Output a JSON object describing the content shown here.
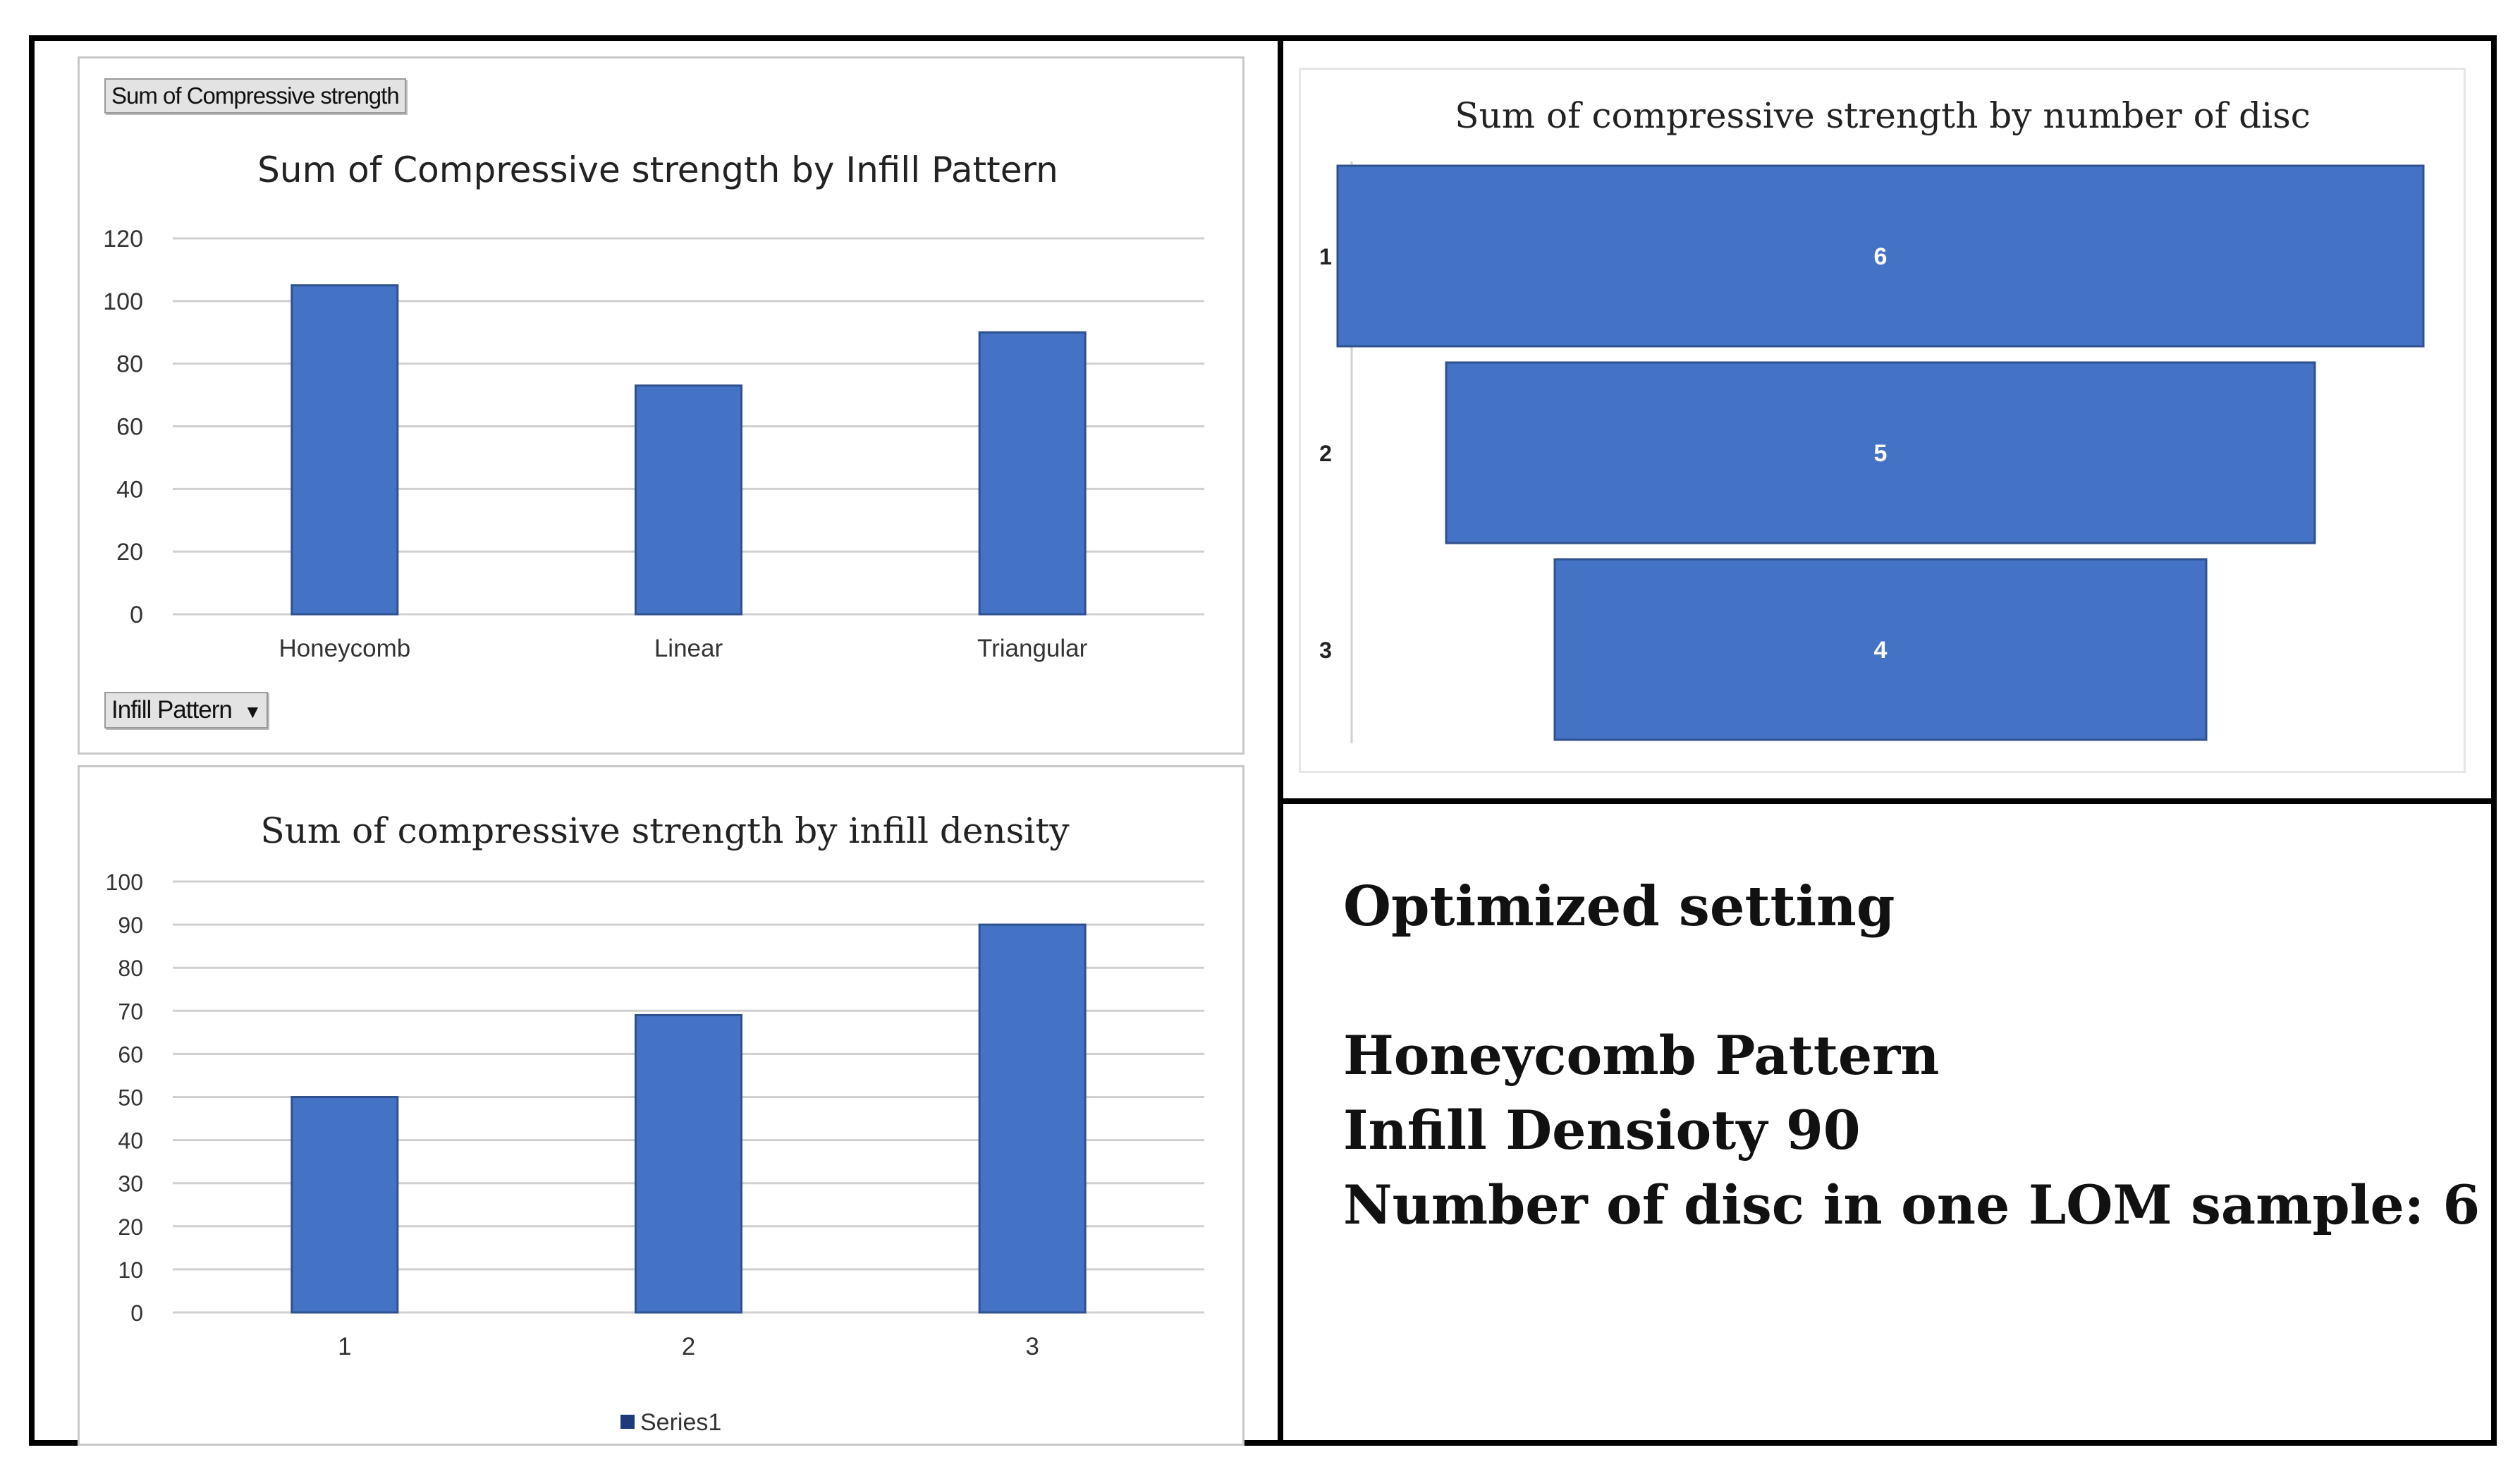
{
  "chart_data": [
    {
      "id": "infill-pattern",
      "type": "bar",
      "title": "Sum of Compressive strength by Infill Pattern",
      "field_label": "Sum of Compressive strength",
      "axis_field_button": "Infill Pattern",
      "categories": [
        "Honeycomb",
        "Linear",
        "Triangular"
      ],
      "values": [
        105,
        73,
        90
      ],
      "ylim": [
        0,
        120
      ],
      "yticks": [
        0,
        20,
        40,
        60,
        80,
        100,
        120
      ],
      "xlabel": "",
      "ylabel": "",
      "grid": true,
      "color": "#4472C4"
    },
    {
      "id": "infill-density",
      "type": "bar",
      "title": "Sum of compressive strength by infill density",
      "categories": [
        "1",
        "2",
        "3"
      ],
      "series": [
        {
          "name": "Series1",
          "values": [
            50,
            69,
            90
          ]
        }
      ],
      "ylim": [
        0,
        100
      ],
      "yticks": [
        0,
        10,
        20,
        30,
        40,
        50,
        60,
        70,
        80,
        90,
        100
      ],
      "xlabel": "",
      "ylabel": "",
      "grid": true,
      "legend": "bottom",
      "color": "#4472C4"
    },
    {
      "id": "number-of-disc",
      "type": "funnel",
      "title": "Sum of compressive strength by number of disc",
      "categories": [
        "1",
        "2",
        "3"
      ],
      "values": [
        6,
        5,
        4
      ],
      "color": "#4472C4"
    }
  ],
  "summary": {
    "heading": "Optimized setting",
    "lines": [
      "Honeycomb Pattern",
      "Infill Densioty 90",
      "Number of disc in one LOM sample: 6"
    ]
  }
}
